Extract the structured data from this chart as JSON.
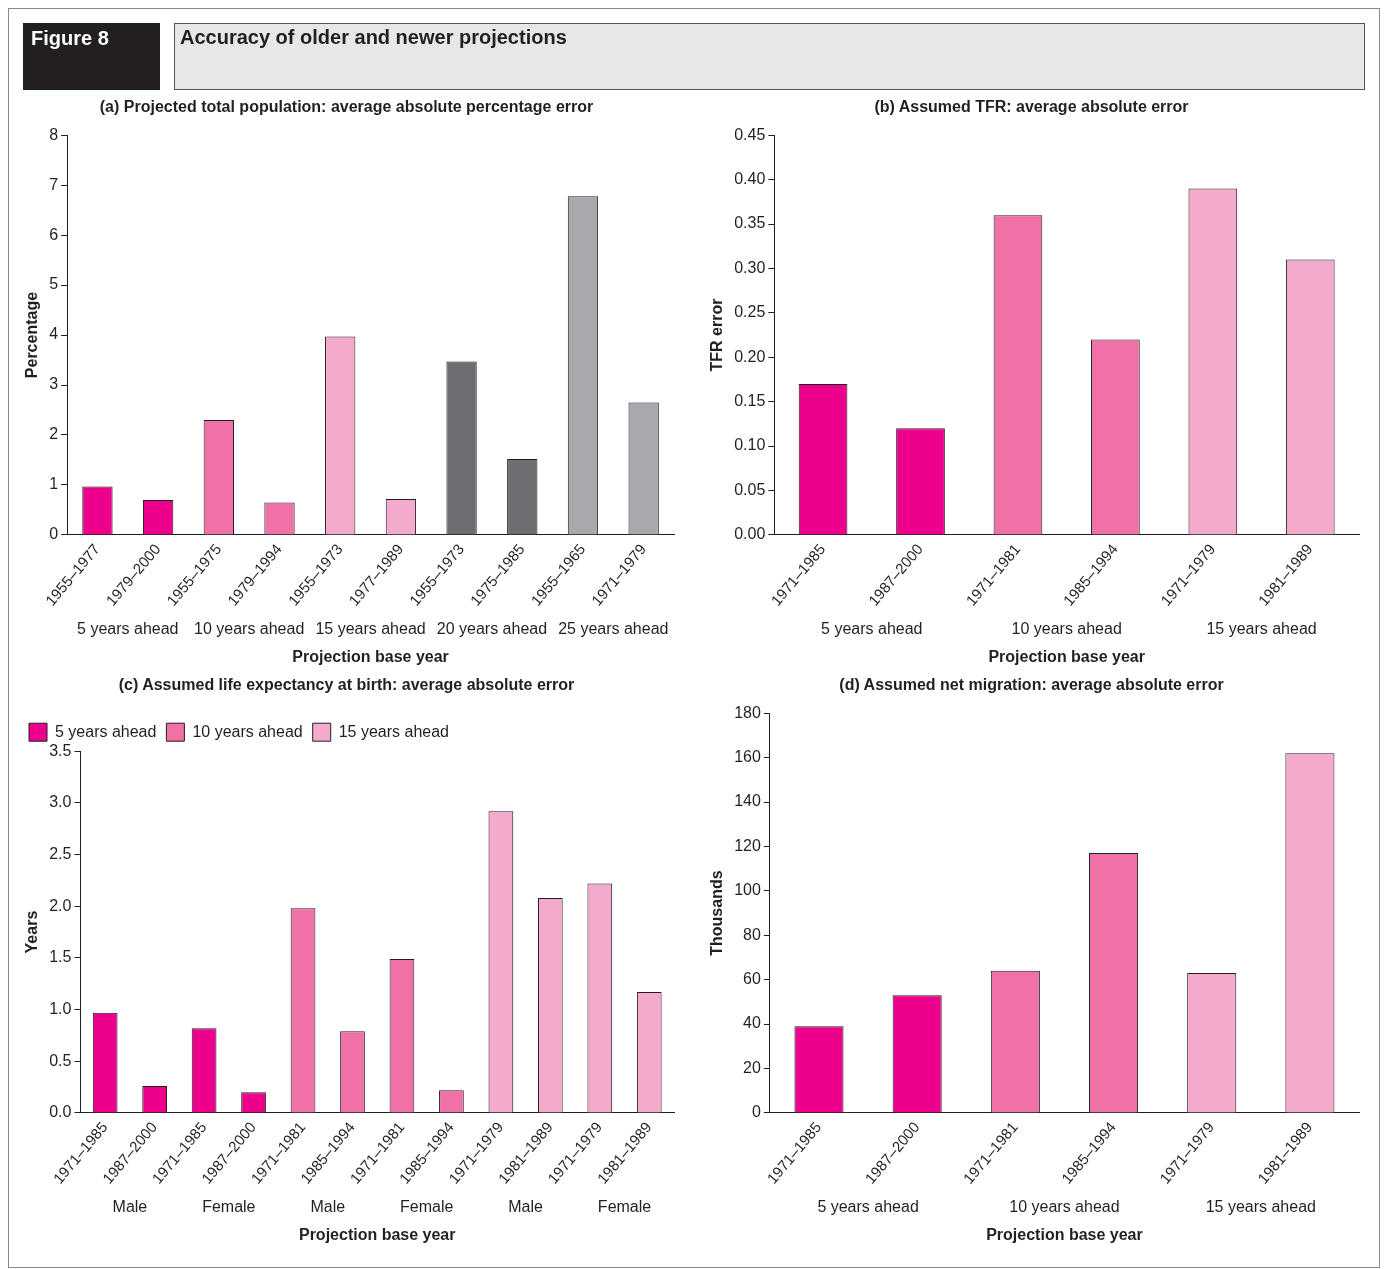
{
  "chart_data": [
    {
      "type": "bar",
      "title": "Accuracy of older and newer projections",
      "subtitle": "(a) Projected total population: average absolute percentage error",
      "xlabel": "Projection base year",
      "ylabel": "Percentage",
      "annotations": [
        {
          "text": "Figure 8"
        },
        "5 years ahead",
        "10 years ahead",
        "15 years ahead",
        "20 years ahead",
        "25 years ahead"
      ],
      "categories": [
        "1955–1977",
        "1979–2000",
        "1955–1975",
        "1979–1994",
        "1955–1973",
        "1977–1989",
        "1955–1973",
        "1975–1985",
        "1955–1965",
        "1971–1979"
      ],
      "values": [
        0.97,
        0.7,
        2.3,
        0.65,
        3.97,
        0.72,
        3.47,
        1.52,
        6.78,
        2.65
      ],
      "colors": [
        "#ec008c",
        "#ec008c",
        "#f070a8",
        "#f070a8",
        "#f4aacd",
        "#f4aacd",
        "#6d6e71",
        "#6d6e71",
        "#a7a9ac",
        "#a7a9ac"
      ],
      "ylim": [
        0,
        8
      ],
      "yticks": [
        0,
        1,
        2,
        3,
        4,
        5,
        6,
        7,
        8
      ],
      "grid": false,
      "legend": false
    },
    {
      "type": "bar",
      "title": "(b) Assumed TFR: average absolute error",
      "xlabel": "Projection base year",
      "ylabel": "TFR error",
      "annotations": [
        "5 years ahead",
        "10 years ahead",
        "15 years ahead"
      ],
      "categories": [
        "1971–1985",
        "1987–2000",
        "1971–1981",
        "1985–1994",
        "1971–1979",
        "1981–1989"
      ],
      "values": [
        0.17,
        0.12,
        0.36,
        0.22,
        0.39,
        0.31
      ],
      "colors": [
        "#ec008c",
        "#ec008c",
        "#f070a8",
        "#f070a8",
        "#f4aacd",
        "#f4aacd"
      ],
      "ylim": [
        0,
        0.45
      ],
      "yticks": [
        {
          "value": 0,
          "label": "0.00"
        },
        {
          "value": 0.05,
          "label": "0.05"
        },
        {
          "value": 0.1,
          "label": "0.10"
        },
        {
          "value": 0.15,
          "label": "0.15"
        },
        {
          "value": 0.2,
          "label": "0.20"
        },
        {
          "value": 0.25,
          "label": "0.25"
        },
        {
          "value": 0.3,
          "label": "0.30"
        },
        {
          "value": 0.35,
          "label": "0.35"
        },
        {
          "value": 0.4,
          "label": "0.40"
        },
        {
          "value": 0.45,
          "label": "0.45"
        }
      ],
      "grid": false,
      "legend": false
    },
    {
      "type": "bar",
      "title": "(c) Assumed life expectancy at birth: average absolute error",
      "xlabel": "Projection base year",
      "ylabel": "Years",
      "annotations": [
        "Male",
        "Female",
        "Male",
        "Female",
        "Male",
        "Female"
      ],
      "categories": [
        "1971–1985",
        "1987–2000",
        "1971–1985",
        "1987–2000",
        "1971–1981",
        "1985–1994",
        "1971–1981",
        "1985–1994",
        "1971–1979",
        "1981–1989",
        "1971–1979",
        "1981–1989"
      ],
      "series": [
        {
          "name": "5 years ahead",
          "color": "#ec008c",
          "values": [
            0.97,
            0.26,
            0.82,
            0.2,
            null,
            null,
            null,
            null,
            null,
            null,
            null,
            null
          ]
        },
        {
          "name": "10 years ahead",
          "color": "#f070a8",
          "values": [
            null,
            null,
            null,
            null,
            1.98,
            0.79,
            1.49,
            0.22,
            null,
            null,
            null,
            null
          ]
        },
        {
          "name": "15 years ahead",
          "color": "#f4aacd",
          "values": [
            null,
            null,
            null,
            null,
            null,
            null,
            null,
            null,
            2.92,
            2.08,
            2.22,
            1.17
          ]
        }
      ],
      "ylim": [
        0,
        3.5
      ],
      "yticks": [
        {
          "value": 0,
          "label": "0.0"
        },
        0.5,
        {
          "value": 1,
          "label": "1.0"
        },
        1.5,
        {
          "value": 2,
          "label": "2.0"
        },
        2.5,
        {
          "value": 3,
          "label": "3.0"
        },
        3.5
      ],
      "grid": false,
      "legend": "top left"
    },
    {
      "type": "bar",
      "title": "(d) Assumed net migration: average absolute error",
      "xlabel": "Projection base year",
      "ylabel": "Thousands",
      "annotations": [
        "5 years ahead",
        "10 years ahead",
        "15 years ahead"
      ],
      "categories": [
        "1971–1985",
        "1987–2000",
        "1971–1981",
        "1985–1994",
        "1971–1979",
        "1981–1989"
      ],
      "values": [
        39,
        53,
        64,
        117,
        63,
        162
      ],
      "colors": [
        "#ec008c",
        "#ec008c",
        "#f070a8",
        "#f070a8",
        "#f4aacd",
        "#f4aacd"
      ],
      "ylim": [
        0,
        180
      ],
      "yticks": [
        0,
        20,
        40,
        60,
        80,
        100,
        120,
        140,
        160,
        180
      ],
      "grid": false,
      "legend": false
    }
  ]
}
